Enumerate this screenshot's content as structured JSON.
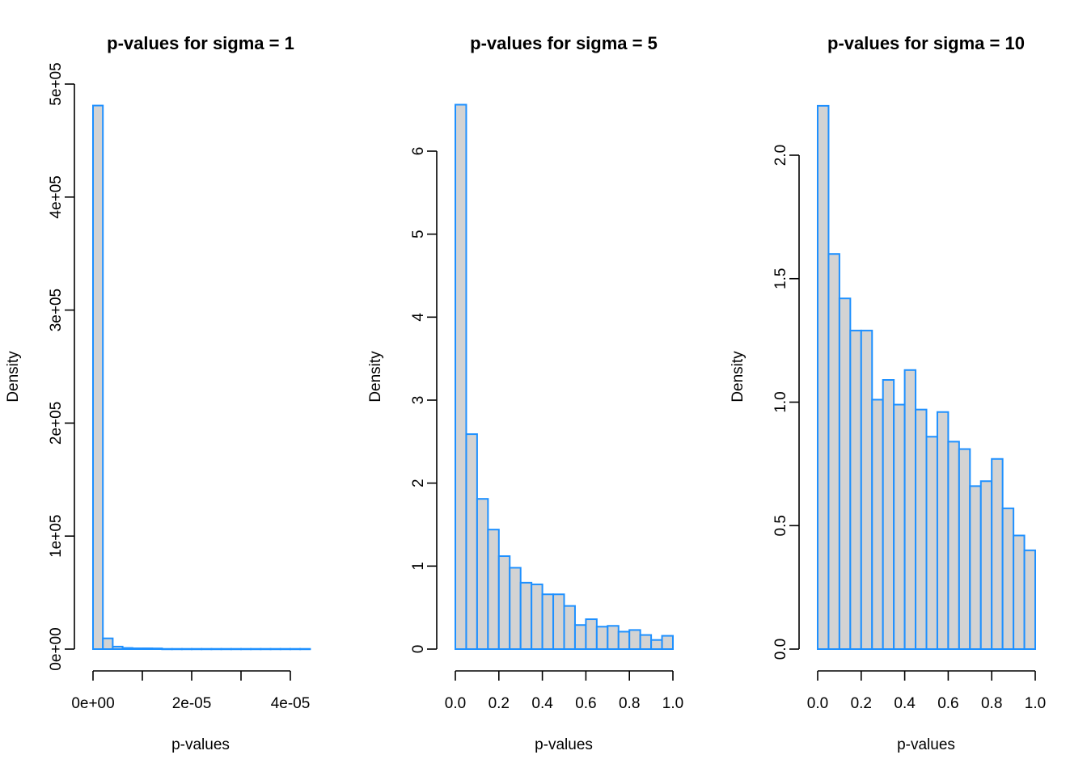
{
  "chart_data": [
    {
      "type": "bar",
      "title": "p-values for sigma = 1",
      "xlabel": "p-values",
      "ylabel": "Density",
      "xlim": [
        -5e-07,
        4.5e-05
      ],
      "ylim": [
        0,
        500000
      ],
      "xticks": [
        0,
        1e-05,
        2e-05,
        3e-05,
        4e-05
      ],
      "xtick_labels": [
        "0e+00",
        "",
        "2e-05",
        "",
        "4e-05"
      ],
      "yticks": [
        0,
        100000,
        200000,
        300000,
        400000,
        500000
      ],
      "ytick_labels": [
        "0e+00",
        "1e+05",
        "2e+05",
        "3e+05",
        "4e+05",
        "5e+05"
      ],
      "bin_width": 2e-06,
      "bin_start": 0,
      "values": [
        481000,
        9500,
        2200,
        1000,
        700,
        700,
        600,
        200,
        200,
        200,
        200,
        200,
        200,
        200,
        200,
        200,
        200,
        200,
        200,
        200,
        200,
        200
      ],
      "fill_color": "#d3d3d3",
      "border_color": "#1e90ff",
      "grid": false
    },
    {
      "type": "bar",
      "title": "p-values for sigma = 5",
      "xlabel": "p-values",
      "ylabel": "Density",
      "xlim": [
        0,
        1
      ],
      "ylim": [
        0,
        6
      ],
      "xticks": [
        0,
        0.2,
        0.4,
        0.6,
        0.8,
        1.0
      ],
      "xtick_labels": [
        "0.0",
        "0.2",
        "0.4",
        "0.6",
        "0.8",
        "1.0"
      ],
      "yticks": [
        0,
        1,
        2,
        3,
        4,
        5,
        6
      ],
      "ytick_labels": [
        "0",
        "1",
        "2",
        "3",
        "4",
        "5",
        "6"
      ],
      "bin_width": 0.05,
      "bin_start": 0,
      "values": [
        6.56,
        2.59,
        1.81,
        1.44,
        1.12,
        0.98,
        0.8,
        0.78,
        0.66,
        0.66,
        0.52,
        0.29,
        0.36,
        0.27,
        0.28,
        0.21,
        0.23,
        0.17,
        0.11,
        0.16
      ],
      "fill_color": "#d3d3d3",
      "border_color": "#1e90ff",
      "grid": false
    },
    {
      "type": "bar",
      "title": "p-values for sigma = 10",
      "xlabel": "p-values",
      "ylabel": "Density",
      "xlim": [
        0,
        1
      ],
      "ylim": [
        0,
        2.0
      ],
      "xticks": [
        0,
        0.2,
        0.4,
        0.6,
        0.8,
        1.0
      ],
      "xtick_labels": [
        "0.0",
        "0.2",
        "0.4",
        "0.6",
        "0.8",
        "1.0"
      ],
      "yticks": [
        0,
        0.5,
        1.0,
        1.5,
        2.0
      ],
      "ytick_labels": [
        "0.0",
        "0.5",
        "1.0",
        "1.5",
        "2.0"
      ],
      "bin_width": 0.05,
      "bin_start": 0,
      "values": [
        2.2,
        1.6,
        1.42,
        1.29,
        1.29,
        1.01,
        1.09,
        0.99,
        1.13,
        0.97,
        0.86,
        0.96,
        0.84,
        0.81,
        0.66,
        0.68,
        0.77,
        0.57,
        0.46,
        0.4
      ],
      "fill_color": "#d3d3d3",
      "border_color": "#1e90ff",
      "grid": false
    }
  ]
}
